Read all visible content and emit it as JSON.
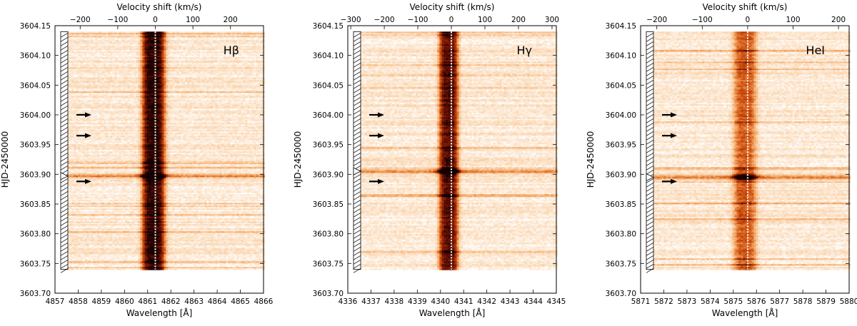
{
  "chart_data": [
    {
      "type": "heatmap",
      "line_label": "Hβ",
      "title": "",
      "xlabel": "Wavelength [Å]",
      "ylabel": "HJD-2450000",
      "top_xlabel": "Velocity shift (km/s)",
      "xlim": [
        4857,
        4866
      ],
      "xticks": [
        4857,
        4858,
        4859,
        4860,
        4861,
        4862,
        4863,
        4864,
        4865,
        4866
      ],
      "vlim": [
        -270,
        285
      ],
      "vticks": [
        -200,
        -100,
        0,
        100,
        200
      ],
      "ylim": [
        3603.7,
        3604.15
      ],
      "yticks": [
        "3603.70",
        "3603.75",
        "3603.80",
        "3603.85",
        "3603.90",
        "3603.95",
        "3604.00",
        "3604.05",
        "3604.10",
        "3604.15"
      ],
      "data_time_range": [
        3603.74,
        3604.14
      ],
      "rest_wavelength": 4861.33,
      "line_center": 4861.25,
      "line_width": 0.5,
      "line_strength": 0.85,
      "flare_time": 3603.897,
      "arrow_times": [
        3604.0,
        3603.965,
        3603.888
      ],
      "cmap": [
        "#ffffff",
        "#fbd9b6",
        "#f3a460",
        "#cc4b0a",
        "#7a1505",
        "#150000"
      ]
    },
    {
      "type": "heatmap",
      "line_label": "Hγ",
      "title": "",
      "xlabel": "Wavelength [Å]",
      "ylabel": "HJD-2450000",
      "top_xlabel": "Velocity shift (km/s)",
      "xlim": [
        4336,
        4345
      ],
      "xticks": [
        4336,
        4337,
        4338,
        4339,
        4340,
        4341,
        4342,
        4343,
        4344,
        4345
      ],
      "vlim": [
        -300,
        310
      ],
      "vticks": [
        -300,
        -200,
        -100,
        0,
        100,
        200,
        300
      ],
      "ylim": [
        3603.7,
        3604.15
      ],
      "yticks": [
        "3603.70",
        "3603.75",
        "3603.80",
        "3603.85",
        "3603.90",
        "3603.95",
        "3604.00",
        "3604.05",
        "3604.10",
        "3604.15"
      ],
      "data_time_range": [
        3603.74,
        3604.14
      ],
      "rest_wavelength": 4340.47,
      "line_center": 4340.35,
      "line_width": 0.42,
      "line_strength": 0.75,
      "flare_time": 3603.905,
      "arrow_times": [
        3604.0,
        3603.965,
        3603.888
      ],
      "cmap": [
        "#ffffff",
        "#fbd9b6",
        "#f3a460",
        "#cc4b0a",
        "#7a1505",
        "#150000"
      ]
    },
    {
      "type": "heatmap",
      "line_label": "HeI",
      "title": "",
      "xlabel": "Wavelength [Å]",
      "ylabel": "HJD-2450000",
      "top_xlabel": "Velocity shift (km/s)",
      "xlim": [
        5871,
        5880
      ],
      "xticks": [
        5871,
        5872,
        5873,
        5874,
        5875,
        5876,
        5877,
        5878,
        5879,
        5880
      ],
      "vlim": [
        -245,
        220
      ],
      "vticks": [
        -200,
        -100,
        0,
        100,
        200
      ],
      "ylim": [
        3603.7,
        3604.15
      ],
      "yticks": [
        "3603.70",
        "3603.75",
        "3603.80",
        "3603.85",
        "3603.90",
        "3603.95",
        "3604.00",
        "3604.05",
        "3604.10",
        "3604.15"
      ],
      "data_time_range": [
        3603.74,
        3604.14
      ],
      "rest_wavelength": 5875.62,
      "line_center": 5875.5,
      "line_width": 0.5,
      "line_strength": 0.45,
      "flare_time": 3603.895,
      "arrow_times": [
        3604.0,
        3603.965,
        3603.888
      ],
      "cmap": [
        "#ffffff",
        "#fbd9b6",
        "#f3a460",
        "#cc4b0a",
        "#7a1505",
        "#150000"
      ]
    }
  ]
}
